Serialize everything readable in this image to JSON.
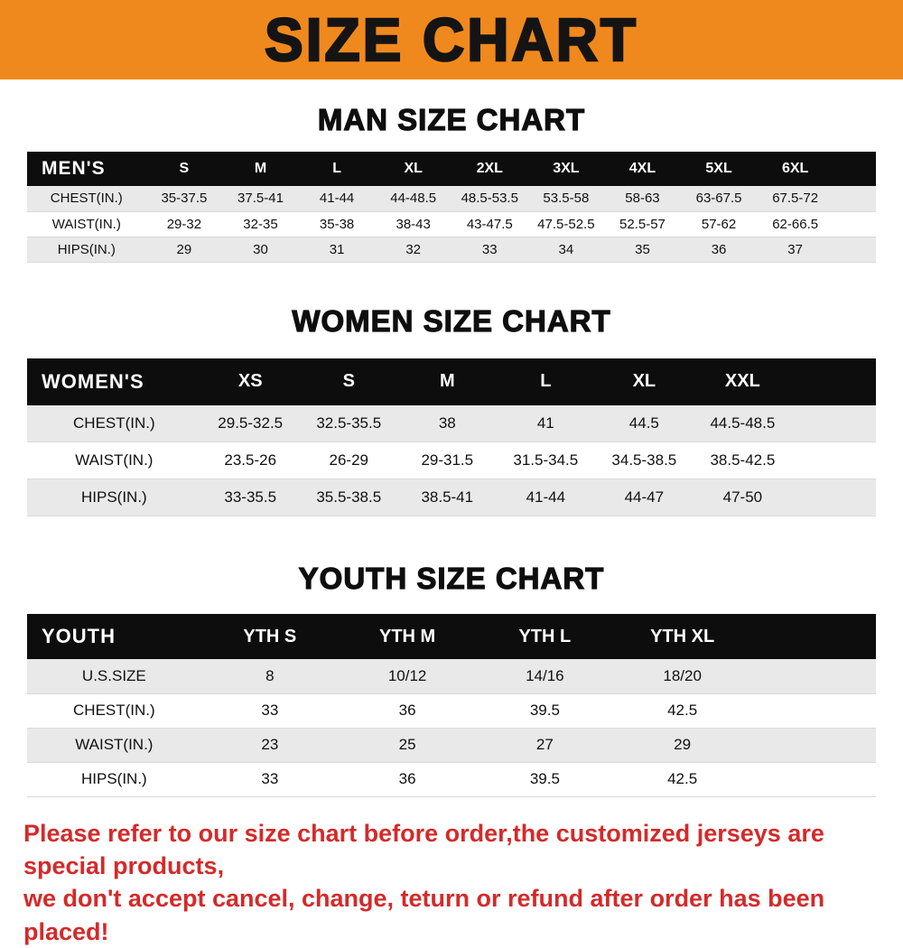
{
  "banner": {
    "title": "SIZE CHART",
    "bg_color": "#f0891d"
  },
  "colors": {
    "header_bg": "#0d0d0d",
    "row_alt_bg": "#e9e9e9",
    "footer_text": "#d42a2a"
  },
  "chart_data": [
    {
      "type": "table",
      "title": "MAN SIZE CHART",
      "columns": [
        "MEN'S",
        "S",
        "M",
        "L",
        "XL",
        "2XL",
        "3XL",
        "4XL",
        "5XL",
        "6XL"
      ],
      "rows": [
        [
          "CHEST(IN.)",
          "35-37.5",
          "37.5-41",
          "41-44",
          "44-48.5",
          "48.5-53.5",
          "53.5-58",
          "58-63",
          "63-67.5",
          "67.5-72"
        ],
        [
          "WAIST(IN.)",
          "29-32",
          "32-35",
          "35-38",
          "38-43",
          "43-47.5",
          "47.5-52.5",
          "52.5-57",
          "57-62",
          "62-66.5"
        ],
        [
          "HIPS(IN.)",
          "29",
          "30",
          "31",
          "32",
          "33",
          "34",
          "35",
          "36",
          "37"
        ]
      ]
    },
    {
      "type": "table",
      "title": "WOMEN SIZE CHART",
      "columns": [
        "WOMEN'S",
        "XS",
        "S",
        "M",
        "L",
        "XL",
        "XXL"
      ],
      "rows": [
        [
          "CHEST(IN.)",
          "29.5-32.5",
          "32.5-35.5",
          "38",
          "41",
          "44.5",
          "44.5-48.5"
        ],
        [
          "WAIST(IN.)",
          "23.5-26",
          "26-29",
          "29-31.5",
          "31.5-34.5",
          "34.5-38.5",
          "38.5-42.5"
        ],
        [
          "HIPS(IN.)",
          "33-35.5",
          "35.5-38.5",
          "38.5-41",
          "41-44",
          "44-47",
          "47-50"
        ]
      ]
    },
    {
      "type": "table",
      "title": "YOUTH SIZE CHART",
      "columns": [
        "YOUTH",
        "YTH S",
        "YTH M",
        "YTH L",
        "YTH XL"
      ],
      "rows": [
        [
          "U.S.SIZE",
          "8",
          "10/12",
          "14/16",
          "18/20"
        ],
        [
          "CHEST(IN.)",
          "33",
          "36",
          "39.5",
          "42.5"
        ],
        [
          "WAIST(IN.)",
          "23",
          "25",
          "27",
          "29"
        ],
        [
          "HIPS(IN.)",
          "33",
          "36",
          "39.5",
          "42.5"
        ]
      ]
    }
  ],
  "footer": {
    "line1": "Please refer to our size chart before order,the customized jerseys are special products,",
    "line2": "we don't accept cancel, change, teturn or refund after order has been placed!"
  }
}
